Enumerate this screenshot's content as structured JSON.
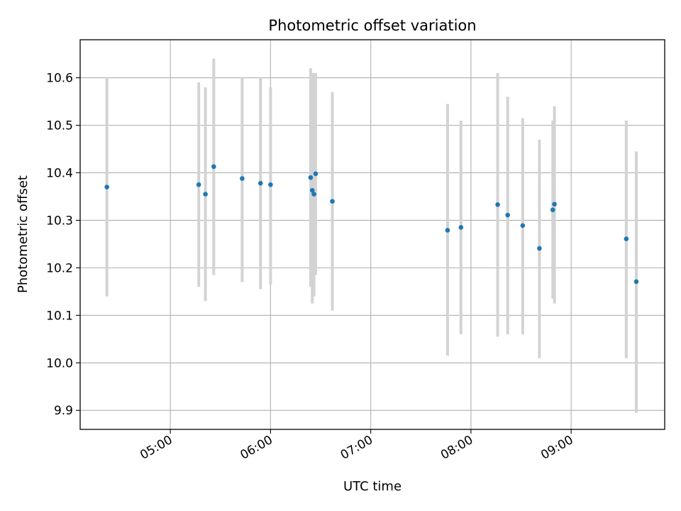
{
  "chart_data": {
    "type": "scatter",
    "title": "Photometric offset variation",
    "xlabel": "UTC time",
    "ylabel": "Photometric offset",
    "grid": true,
    "xlim": [
      "04:06",
      "09:56"
    ],
    "ylim": [
      9.86,
      10.68
    ],
    "x_ticks": [
      "05:00",
      "06:00",
      "07:00",
      "08:00",
      "09:00"
    ],
    "y_ticks": [
      9.9,
      10.0,
      10.1,
      10.2,
      10.3,
      10.4,
      10.5,
      10.6
    ],
    "colors": {
      "point": "#1f77b4",
      "errorbar": "#d3d3d3",
      "grid": "#b0b0b0"
    },
    "points": [
      {
        "time": "04:22",
        "value": 10.37,
        "low": 10.14,
        "high": 10.6
      },
      {
        "time": "05:17",
        "value": 10.375,
        "low": 10.16,
        "high": 10.59
      },
      {
        "time": "05:21",
        "value": 10.355,
        "low": 10.13,
        "high": 10.58
      },
      {
        "time": "05:26",
        "value": 10.413,
        "low": 10.185,
        "high": 10.64
      },
      {
        "time": "05:43",
        "value": 10.388,
        "low": 10.17,
        "high": 10.6
      },
      {
        "time": "05:54",
        "value": 10.378,
        "low": 10.155,
        "high": 10.6
      },
      {
        "time": "06:00",
        "value": 10.375,
        "low": 10.165,
        "high": 10.58
      },
      {
        "time": "06:24",
        "value": 10.39,
        "low": 10.16,
        "high": 10.62
      },
      {
        "time": "06:25",
        "value": 10.363,
        "low": 10.125,
        "high": 10.61
      },
      {
        "time": "06:26",
        "value": 10.355,
        "low": 10.14,
        "high": 10.61
      },
      {
        "time": "06:27",
        "value": 10.398,
        "low": 10.185,
        "high": 10.61
      },
      {
        "time": "06:37",
        "value": 10.34,
        "low": 10.11,
        "high": 10.57
      },
      {
        "time": "07:46",
        "value": 10.279,
        "low": 10.015,
        "high": 10.545
      },
      {
        "time": "07:54",
        "value": 10.285,
        "low": 10.06,
        "high": 10.51
      },
      {
        "time": "08:16",
        "value": 10.333,
        "low": 10.055,
        "high": 10.61
      },
      {
        "time": "08:22",
        "value": 10.311,
        "low": 10.06,
        "high": 10.56
      },
      {
        "time": "08:31",
        "value": 10.289,
        "low": 10.06,
        "high": 10.515
      },
      {
        "time": "08:41",
        "value": 10.241,
        "low": 10.01,
        "high": 10.47
      },
      {
        "time": "08:49",
        "value": 10.322,
        "low": 10.135,
        "high": 10.51
      },
      {
        "time": "08:50",
        "value": 10.334,
        "low": 10.125,
        "high": 10.54
      },
      {
        "time": "09:33",
        "value": 10.261,
        "low": 10.01,
        "high": 10.51
      },
      {
        "time": "09:39",
        "value": 10.171,
        "low": 9.895,
        "high": 10.445
      }
    ]
  }
}
